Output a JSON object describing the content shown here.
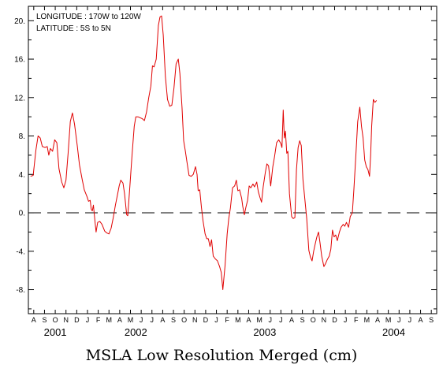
{
  "chart_data": {
    "type": "line",
    "title": "MSLA Low Resolution Merged (cm)",
    "annotations": [
      "LONGITUDE : 170W to 120W",
      "LATITUDE : 5S to 5N"
    ],
    "xlabel": "",
    "ylabel": "",
    "y_ticks": [
      20,
      16,
      12,
      8,
      4,
      0,
      -4,
      -8
    ],
    "y_tick_labels": [
      "20.",
      "16.",
      "12.",
      "8.",
      "4.",
      "0.",
      "-4.",
      "-8."
    ],
    "ylim": [
      -10.5,
      21.5
    ],
    "month_labels": [
      "A",
      "S",
      "O",
      "N",
      "D",
      "J",
      "F",
      "M",
      "A",
      "M",
      "J",
      "J",
      "A",
      "S",
      "O",
      "N",
      "D",
      "J",
      "F",
      "M",
      "A",
      "M",
      "J",
      "J",
      "A",
      "S",
      "O",
      "N",
      "D",
      "J",
      "F",
      "M",
      "A",
      "M",
      "J",
      "J",
      "A",
      "S"
    ],
    "year_labels": [
      {
        "label": "2001",
        "month_index": 2
      },
      {
        "label": "2002",
        "month_index": 9.5
      },
      {
        "label": "2003",
        "month_index": 21.5
      },
      {
        "label": "2004",
        "month_index": 33.5
      }
    ],
    "xlim": [
      0,
      38
    ],
    "zero_line": {
      "y": 0,
      "style": "dashed"
    },
    "series": [
      {
        "color": "#e00000",
        "points": [
          [
            0.2,
            3.8
          ],
          [
            0.45,
            3.9
          ],
          [
            0.7,
            6.5
          ],
          [
            0.9,
            8.0
          ],
          [
            1.1,
            7.8
          ],
          [
            1.3,
            6.9
          ],
          [
            1.55,
            6.8
          ],
          [
            1.75,
            6.9
          ],
          [
            1.9,
            6.0
          ],
          [
            2.05,
            6.7
          ],
          [
            2.25,
            6.4
          ],
          [
            2.45,
            7.6
          ],
          [
            2.65,
            7.3
          ],
          [
            2.85,
            4.6
          ],
          [
            3.1,
            3.2
          ],
          [
            3.3,
            2.6
          ],
          [
            3.5,
            3.4
          ],
          [
            3.7,
            6.2
          ],
          [
            3.9,
            9.5
          ],
          [
            4.1,
            10.4
          ],
          [
            4.3,
            9.2
          ],
          [
            4.55,
            7.0
          ],
          [
            4.75,
            5.0
          ],
          [
            5.0,
            3.5
          ],
          [
            5.2,
            2.4
          ],
          [
            5.45,
            1.7
          ],
          [
            5.6,
            1.2
          ],
          [
            5.75,
            1.3
          ],
          [
            5.85,
            0.4
          ],
          [
            5.95,
            0.2
          ],
          [
            6.05,
            0.8
          ],
          [
            6.2,
            -0.9
          ],
          [
            6.3,
            -2.0
          ],
          [
            6.45,
            -1.0
          ],
          [
            6.65,
            -0.9
          ],
          [
            6.85,
            -1.2
          ],
          [
            7.1,
            -1.9
          ],
          [
            7.3,
            -2.1
          ],
          [
            7.5,
            -2.2
          ],
          [
            7.7,
            -1.6
          ],
          [
            7.9,
            -0.5
          ],
          [
            8.1,
            0.8
          ],
          [
            8.3,
            1.9
          ],
          [
            8.45,
            2.8
          ],
          [
            8.6,
            3.4
          ],
          [
            8.8,
            3.1
          ],
          [
            8.95,
            2.0
          ],
          [
            9.15,
            -0.2
          ],
          [
            9.25,
            -0.3
          ],
          [
            9.45,
            2.8
          ],
          [
            9.65,
            6.0
          ],
          [
            9.85,
            9.0
          ],
          [
            10.0,
            10.0
          ],
          [
            10.2,
            10.0
          ],
          [
            10.4,
            9.9
          ],
          [
            10.6,
            9.8
          ],
          [
            10.8,
            9.6
          ],
          [
            11.0,
            10.5
          ],
          [
            11.2,
            12.0
          ],
          [
            11.4,
            13.2
          ],
          [
            11.55,
            15.3
          ],
          [
            11.7,
            15.2
          ],
          [
            11.9,
            16.0
          ],
          [
            12.1,
            19.5
          ],
          [
            12.25,
            20.4
          ],
          [
            12.4,
            20.5
          ],
          [
            12.55,
            18.5
          ],
          [
            12.75,
            14.2
          ],
          [
            12.95,
            11.8
          ],
          [
            13.15,
            11.1
          ],
          [
            13.35,
            11.2
          ],
          [
            13.55,
            13.0
          ],
          [
            13.75,
            15.5
          ],
          [
            13.95,
            16.0
          ],
          [
            14.1,
            14.5
          ],
          [
            14.3,
            11.0
          ],
          [
            14.45,
            7.5
          ],
          [
            14.6,
            6.5
          ],
          [
            14.8,
            5.0
          ],
          [
            14.95,
            3.9
          ],
          [
            15.15,
            3.8
          ],
          [
            15.35,
            4.0
          ],
          [
            15.55,
            4.8
          ],
          [
            15.7,
            4.0
          ],
          [
            15.8,
            2.3
          ],
          [
            15.95,
            2.4
          ],
          [
            16.1,
            0.6
          ],
          [
            16.25,
            -0.8
          ],
          [
            16.45,
            -2.2
          ],
          [
            16.6,
            -2.7
          ],
          [
            16.75,
            -2.7
          ],
          [
            16.9,
            -3.5
          ],
          [
            17.05,
            -2.8
          ],
          [
            17.2,
            -4.5
          ],
          [
            17.4,
            -4.8
          ],
          [
            17.6,
            -5.0
          ],
          [
            17.8,
            -5.6
          ],
          [
            17.95,
            -6.2
          ],
          [
            18.1,
            -8.0
          ],
          [
            18.3,
            -5.5
          ],
          [
            18.5,
            -2.2
          ],
          [
            18.65,
            -0.6
          ],
          [
            18.8,
            0.5
          ],
          [
            19.0,
            2.6
          ],
          [
            19.2,
            2.8
          ],
          [
            19.35,
            3.4
          ],
          [
            19.5,
            2.3
          ],
          [
            19.65,
            2.4
          ],
          [
            19.85,
            1.5
          ],
          [
            19.95,
            0.7
          ],
          [
            20.1,
            -0.2
          ],
          [
            20.25,
            0.6
          ],
          [
            20.4,
            1.3
          ],
          [
            20.55,
            2.8
          ],
          [
            20.7,
            2.6
          ],
          [
            20.9,
            3.0
          ],
          [
            21.05,
            2.7
          ],
          [
            21.25,
            3.2
          ],
          [
            21.4,
            2.2
          ],
          [
            21.55,
            1.6
          ],
          [
            21.7,
            1.1
          ],
          [
            21.85,
            2.7
          ],
          [
            22.05,
            4.2
          ],
          [
            22.2,
            5.1
          ],
          [
            22.35,
            4.9
          ],
          [
            22.55,
            2.8
          ],
          [
            22.75,
            4.8
          ],
          [
            22.9,
            5.8
          ],
          [
            23.1,
            7.3
          ],
          [
            23.3,
            7.6
          ],
          [
            23.5,
            7.2
          ],
          [
            23.6,
            6.8
          ],
          [
            23.72,
            10.7
          ],
          [
            23.82,
            7.8
          ],
          [
            23.92,
            8.5
          ],
          [
            24.05,
            6.2
          ],
          [
            24.15,
            6.4
          ],
          [
            24.3,
            2.0
          ],
          [
            24.5,
            -0.4
          ],
          [
            24.65,
            -0.6
          ],
          [
            24.8,
            -0.5
          ],
          [
            24.95,
            4.5
          ],
          [
            25.1,
            6.8
          ],
          [
            25.25,
            7.5
          ],
          [
            25.4,
            7.0
          ],
          [
            25.55,
            3.5
          ],
          [
            25.75,
            1.2
          ],
          [
            25.9,
            -0.6
          ],
          [
            26.1,
            -3.9
          ],
          [
            26.25,
            -4.6
          ],
          [
            26.4,
            -5.0
          ],
          [
            26.55,
            -4.0
          ],
          [
            26.7,
            -3.2
          ],
          [
            26.85,
            -2.5
          ],
          [
            27.0,
            -2.0
          ],
          [
            27.15,
            -3.2
          ],
          [
            27.3,
            -4.5
          ],
          [
            27.5,
            -5.6
          ],
          [
            27.65,
            -5.3
          ],
          [
            27.8,
            -4.9
          ],
          [
            28.0,
            -4.5
          ],
          [
            28.15,
            -3.8
          ],
          [
            28.3,
            -1.8
          ],
          [
            28.45,
            -2.5
          ],
          [
            28.6,
            -2.3
          ],
          [
            28.75,
            -2.9
          ],
          [
            28.95,
            -2.0
          ],
          [
            29.1,
            -1.5
          ],
          [
            29.3,
            -1.2
          ],
          [
            29.45,
            -1.4
          ],
          [
            29.6,
            -1.0
          ],
          [
            29.8,
            -1.5
          ],
          [
            29.95,
            -0.4
          ],
          [
            30.15,
            0.0
          ],
          [
            30.3,
            2.5
          ],
          [
            30.5,
            6.5
          ],
          [
            30.65,
            9.5
          ],
          [
            30.85,
            11.0
          ],
          [
            31.0,
            9.0
          ],
          [
            31.15,
            7.8
          ],
          [
            31.3,
            5.5
          ],
          [
            31.45,
            4.8
          ],
          [
            31.6,
            4.5
          ],
          [
            31.75,
            3.8
          ],
          [
            31.85,
            6.0
          ],
          [
            31.95,
            9.0
          ],
          [
            32.1,
            11.8
          ],
          [
            32.25,
            11.5
          ],
          [
            32.4,
            11.7
          ]
        ]
      }
    ],
    "grid": false,
    "legend": "none"
  }
}
